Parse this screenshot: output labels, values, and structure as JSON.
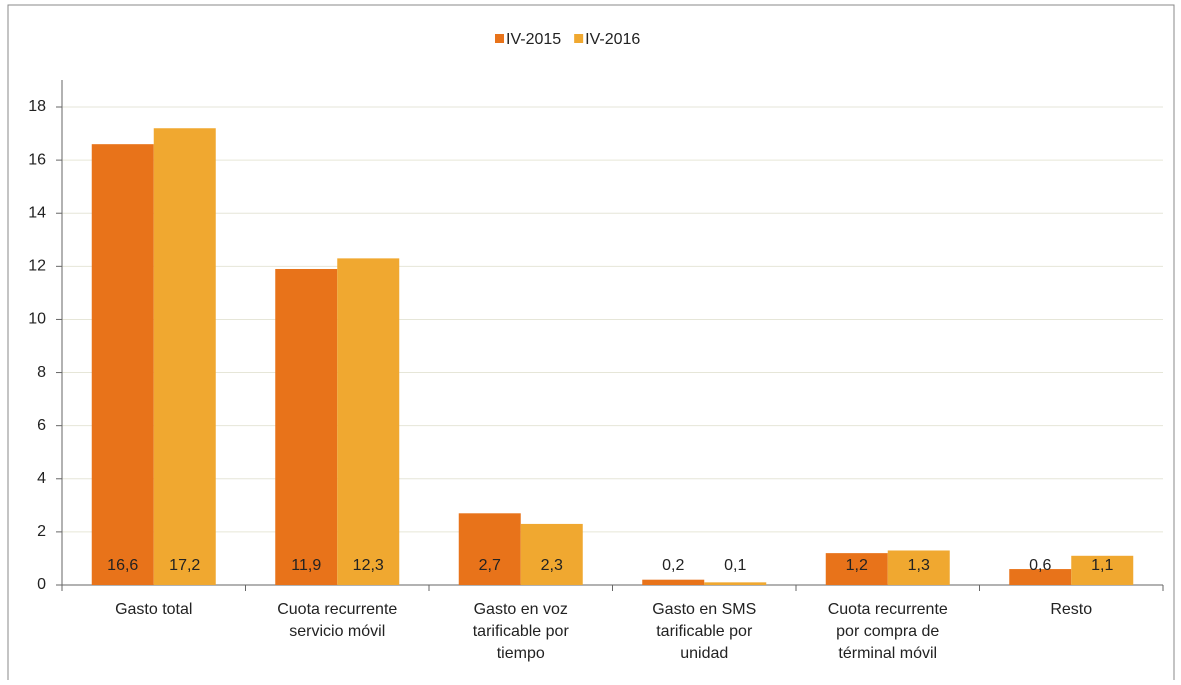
{
  "chart_data": {
    "type": "bar",
    "categories": [
      "Gasto total",
      "Cuota recurrente\nservicio móvil",
      "Gasto en voz\ntarificable por\ntiempo",
      "Gasto en SMS\ntarificable por\nunidad",
      "Cuota recurrente\npor compra de\ntérminal móvil",
      "Resto"
    ],
    "series": [
      {
        "name": "IV-2015",
        "color": "#e8731a",
        "values": [
          16.6,
          11.9,
          2.7,
          0.2,
          1.2,
          0.6
        ],
        "value_labels": [
          "16,6",
          "11,9",
          "2,7",
          "0,2",
          "1,2",
          "0,6"
        ]
      },
      {
        "name": "IV-2016",
        "color": "#f0a830",
        "values": [
          17.2,
          12.3,
          2.3,
          0.1,
          1.3,
          1.1
        ],
        "value_labels": [
          "17,2",
          "12,3",
          "2,3",
          "0,1",
          "1,3",
          "1,1"
        ]
      }
    ],
    "ylim": [
      0,
      18
    ],
    "yticks": [
      0,
      2,
      4,
      6,
      8,
      10,
      12,
      14,
      16,
      18
    ],
    "grid": true
  }
}
